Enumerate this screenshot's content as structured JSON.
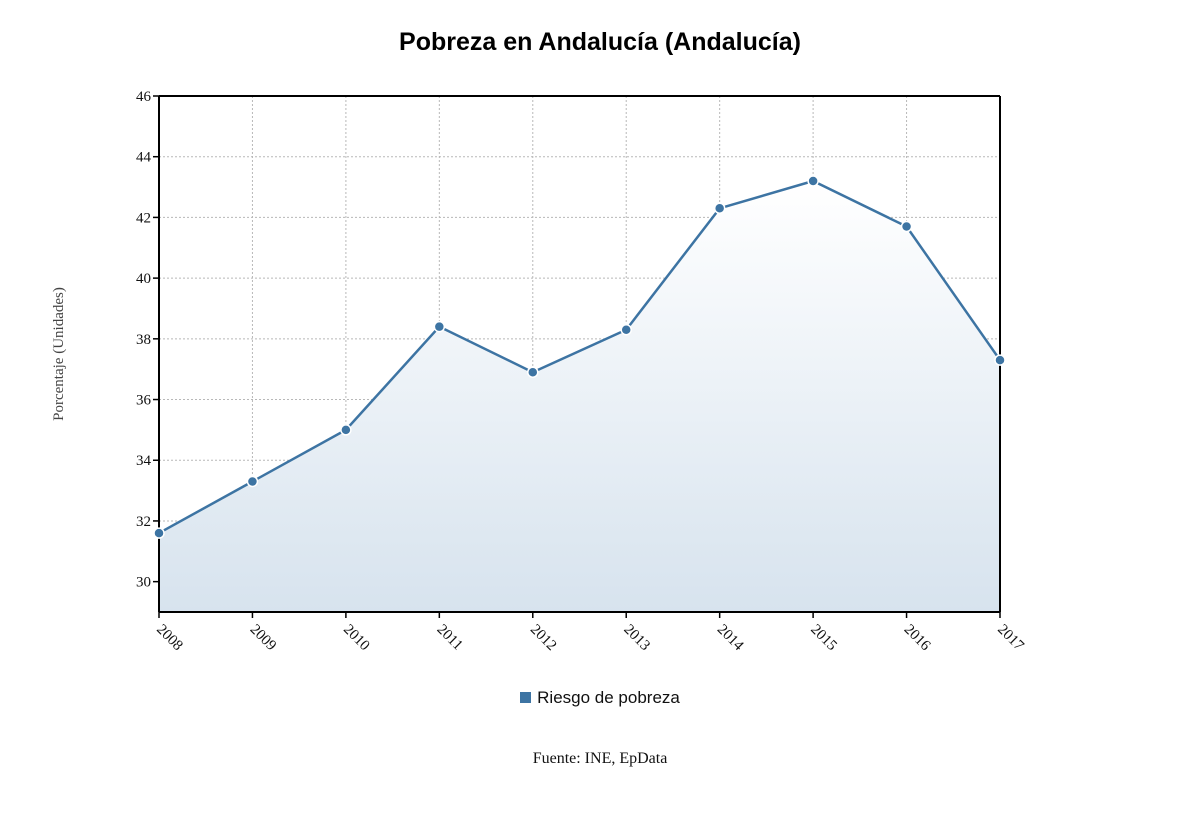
{
  "chart_data": {
    "type": "area",
    "title": "Pobreza en Andalucía (Andalucía)",
    "xlabel": "",
    "ylabel": "Porcentaje (Unidades)",
    "categories": [
      "2008",
      "2009",
      "2010",
      "2011",
      "2012",
      "2013",
      "2014",
      "2015",
      "2016",
      "2017"
    ],
    "series": [
      {
        "name": "Riesgo de pobreza",
        "values": [
          31.6,
          33.3,
          35.0,
          38.4,
          36.9,
          38.3,
          42.3,
          43.2,
          41.7,
          37.3
        ]
      }
    ],
    "ylim": [
      29,
      46
    ],
    "yticks": [
      30,
      32,
      34,
      36,
      38,
      40,
      42,
      44,
      46
    ],
    "grid": true,
    "legend_position": "bottom-center",
    "source": "Fuente: INE, EpData",
    "colors": {
      "line": "#3d74a3",
      "marker_fill": "#3d74a3",
      "marker_stroke": "#ffffff",
      "area_top": "#ffffff",
      "area_bottom": "#d7e3ee",
      "grid": "#b8b8b8",
      "axis": "#000000"
    }
  }
}
